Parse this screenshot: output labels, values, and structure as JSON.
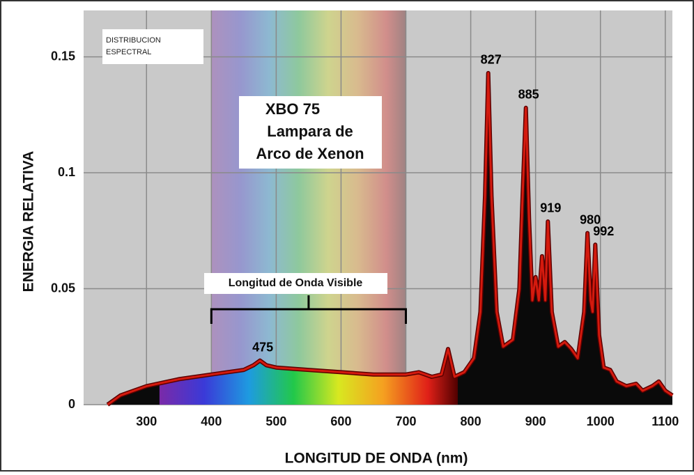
{
  "chart_data": {
    "type": "line",
    "box_title": [
      "DISTRIBUCION",
      "ESPECTRAL"
    ],
    "lamp_label": [
      "XBO 75",
      "Lampara de",
      "Arco de Xenon"
    ],
    "visible_label": "Longitud de Onda Visible",
    "visible_range": [
      400,
      700
    ],
    "xlabel": "LONGITUD DE ONDA (nm)",
    "ylabel": "ENERGIA RELATIVA",
    "x": [
      240,
      260,
      300,
      350,
      400,
      450,
      465,
      475,
      485,
      500,
      550,
      600,
      650,
      700,
      720,
      740,
      755,
      765,
      775,
      790,
      805,
      815,
      822,
      827,
      832,
      840,
      850,
      865,
      875,
      880,
      885,
      890,
      895,
      900,
      905,
      910,
      915,
      919,
      925,
      935,
      945,
      955,
      965,
      975,
      980,
      985,
      988,
      992,
      998,
      1005,
      1015,
      1025,
      1040,
      1055,
      1065,
      1080,
      1090,
      1100,
      1111
    ],
    "values": [
      0,
      0.004,
      0.008,
      0.011,
      0.013,
      0.015,
      0.017,
      0.019,
      0.017,
      0.016,
      0.015,
      0.014,
      0.013,
      0.013,
      0.014,
      0.012,
      0.013,
      0.024,
      0.012,
      0.014,
      0.02,
      0.04,
      0.09,
      0.143,
      0.09,
      0.04,
      0.025,
      0.028,
      0.05,
      0.09,
      0.128,
      0.08,
      0.045,
      0.055,
      0.045,
      0.064,
      0.045,
      0.079,
      0.04,
      0.025,
      0.027,
      0.024,
      0.02,
      0.04,
      0.074,
      0.045,
      0.04,
      0.069,
      0.03,
      0.016,
      0.015,
      0.01,
      0.008,
      0.009,
      0.006,
      0.008,
      0.01,
      0.006,
      0.004
    ],
    "color": "#d41a0e",
    "peaks": [
      475,
      827,
      885,
      919,
      980,
      992
    ],
    "xlim": [
      203,
      1111
    ],
    "ylim": [
      0,
      0.17
    ],
    "xticks": [
      300,
      400,
      500,
      600,
      700,
      800,
      900,
      1000,
      1100
    ],
    "yticks": [
      0,
      0.05,
      0.1,
      0.15
    ],
    "grid": true
  }
}
